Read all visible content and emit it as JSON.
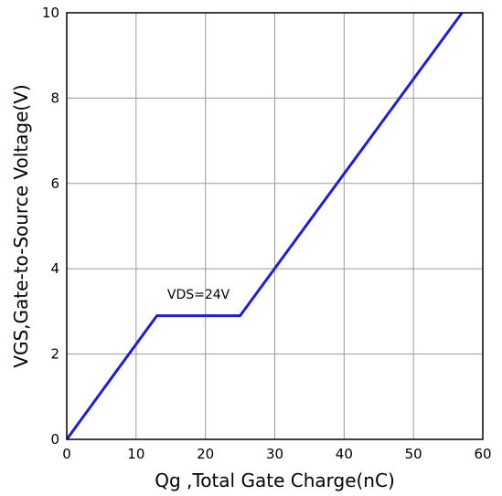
{
  "chart_data": {
    "type": "line",
    "title": "",
    "xlabel": "Qg ,Total Gate Charge(nC)",
    "ylabel": "VGS,Gate-to-Source Voltage(V)",
    "xlim": [
      0,
      60
    ],
    "ylim": [
      0,
      10
    ],
    "xticks": [
      0,
      10,
      20,
      30,
      40,
      50,
      60
    ],
    "yticks": [
      0,
      2,
      4,
      6,
      8,
      10
    ],
    "xtick_labels": [
      "0",
      "10",
      "20",
      "30",
      "40",
      "50",
      "60"
    ],
    "ytick_labels": [
      "0",
      "2",
      "4",
      "6",
      "8",
      "10"
    ],
    "grid": true,
    "series": [
      {
        "color": "#1f1fd0",
        "x": [
          0,
          13,
          25,
          57
        ],
        "y": [
          0,
          2.9,
          2.9,
          10
        ]
      }
    ],
    "annotations": [
      {
        "text": "VDS=24V",
        "x": 19,
        "y": 3.3
      }
    ]
  }
}
